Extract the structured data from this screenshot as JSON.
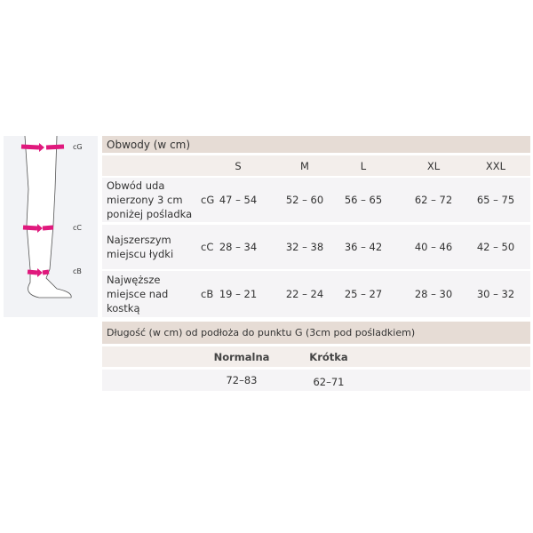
{
  "figure": {
    "labels": [
      "cG",
      "cC",
      "cB"
    ],
    "accent": "#e0197d"
  },
  "circumference": {
    "title": "Obwody (w cm)",
    "sizes": [
      "S",
      "M",
      "L",
      "XL",
      "XXL"
    ],
    "rows": [
      {
        "label": "Obwód uda mierzony 3 cm poniżej pośladka",
        "code": "cG",
        "values": [
          "47 – 54",
          "52 – 60",
          "56 – 65",
          "62 – 72",
          "65 – 75"
        ]
      },
      {
        "label": "Najszerszym miejscu łydki",
        "code": "cC",
        "values": [
          "28 – 34",
          "32 – 38",
          "36 – 42",
          "40 – 46",
          "42 – 50"
        ]
      },
      {
        "label": "Najwęższe miejsce nad kostką",
        "code": "cB",
        "values": [
          "19 – 21",
          "22 – 24",
          "25 – 27",
          "28 – 30",
          "30 – 32"
        ]
      }
    ]
  },
  "length": {
    "title": "Długość (w cm)  od podłoża do punktu G (3cm pod pośladkiem)",
    "columns": [
      "Normalna",
      "Krótka"
    ],
    "values": [
      "72–83",
      "62–71"
    ]
  }
}
